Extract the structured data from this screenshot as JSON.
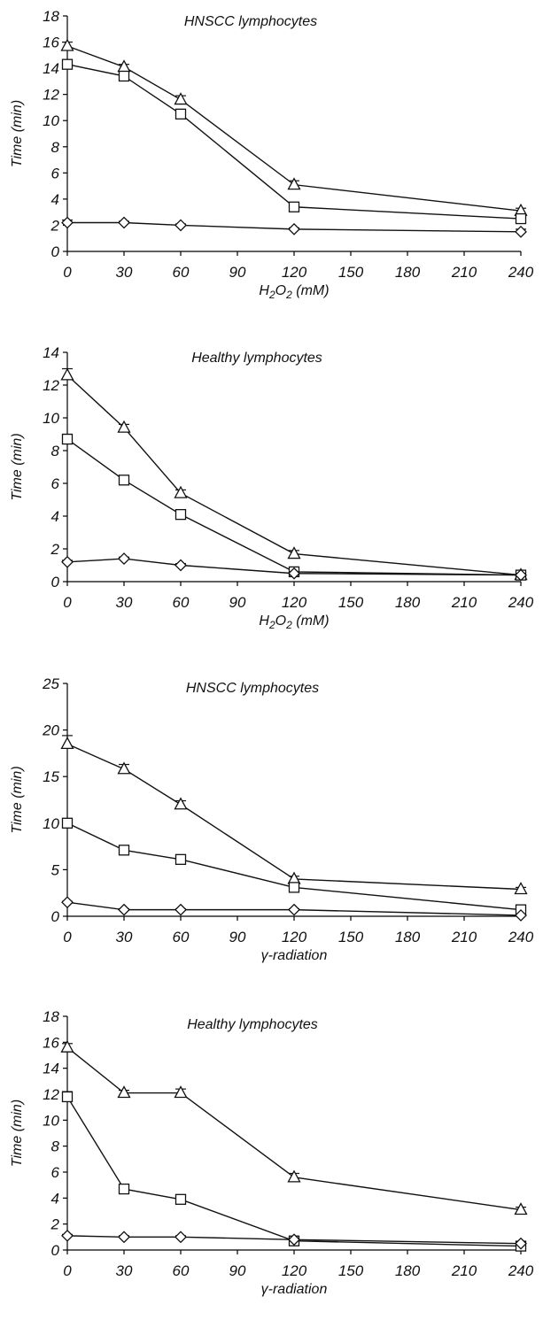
{
  "chart_data": [
    {
      "type": "line",
      "title": "HNSCC lymphocytes",
      "xlabel": "H2O2 (mM)",
      "xlabel_main": "H",
      "xlabel_sub1": "2",
      "xlabel_mid": "O",
      "xlabel_sub2": "2",
      "xlabel_rest": " (mM)",
      "ylabel": "Time (min)",
      "x": [
        0,
        30,
        60,
        120,
        240
      ],
      "xticks": [
        0,
        30,
        60,
        90,
        120,
        150,
        180,
        210,
        240
      ],
      "xlim": [
        0,
        240
      ],
      "yticks": [
        0,
        2,
        4,
        6,
        8,
        10,
        12,
        14,
        16,
        18
      ],
      "ylim": [
        0,
        18
      ],
      "grid": false,
      "series": [
        {
          "marker": "triangle",
          "values": [
            15.7,
            14.1,
            11.6,
            5.1,
            3.1
          ],
          "errors": [
            0.3,
            0.2,
            0.3,
            0.3,
            0.2
          ]
        },
        {
          "marker": "square",
          "values": [
            14.3,
            13.4,
            10.5,
            3.4,
            2.5
          ],
          "errors": [
            0.3,
            0.2,
            0.2,
            0.2,
            0.2
          ]
        },
        {
          "marker": "diamond",
          "values": [
            2.2,
            2.2,
            2.0,
            1.7,
            1.5
          ],
          "errors": [
            0.2,
            0.1,
            0.1,
            0.1,
            0.2
          ]
        }
      ]
    },
    {
      "type": "line",
      "title": "Healthy lymphocytes",
      "xlabel": "H2O2 (mM)",
      "xlabel_main": "H",
      "xlabel_sub1": "2",
      "xlabel_mid": "O",
      "xlabel_sub2": "2",
      "xlabel_rest": " (mM)",
      "ylabel": "Time (min)",
      "x": [
        0,
        30,
        60,
        120,
        240
      ],
      "xticks": [
        0,
        30,
        60,
        90,
        120,
        150,
        180,
        210,
        240
      ],
      "xlim": [
        0,
        240
      ],
      "yticks": [
        0,
        2,
        4,
        6,
        8,
        10,
        12,
        14
      ],
      "ylim": [
        0,
        14
      ],
      "grid": false,
      "series": [
        {
          "marker": "triangle",
          "values": [
            12.6,
            9.4,
            5.4,
            1.7,
            0.4
          ],
          "errors": [
            0.4,
            0.2,
            0.2,
            0.2,
            0.1
          ]
        },
        {
          "marker": "square",
          "values": [
            8.7,
            6.2,
            4.1,
            0.6,
            0.4
          ],
          "errors": [
            0.3,
            0.1,
            0.2,
            0.1,
            0.1
          ]
        },
        {
          "marker": "diamond",
          "values": [
            1.2,
            1.4,
            1.0,
            0.5,
            0.4
          ],
          "errors": [
            0.1,
            0.1,
            0.1,
            0.1,
            0.1
          ]
        }
      ]
    },
    {
      "type": "line",
      "title": "HNSCC lymphocytes",
      "xlabel": "γ-radiation",
      "xlabel_main": "γ-radiation",
      "ylabel": "Time (min)",
      "x": [
        0,
        30,
        60,
        120,
        240
      ],
      "xticks": [
        0,
        30,
        60,
        90,
        120,
        150,
        180,
        210,
        240
      ],
      "xlim": [
        0,
        240
      ],
      "yticks": [
        0,
        5,
        10,
        15,
        20,
        25
      ],
      "ylim": [
        0,
        25
      ],
      "grid": false,
      "series": [
        {
          "marker": "triangle",
          "values": [
            18.5,
            15.8,
            12.0,
            4.0,
            2.9
          ],
          "errors": [
            0.9,
            0.5,
            0.4,
            0.3,
            0.2
          ]
        },
        {
          "marker": "square",
          "values": [
            10.0,
            7.1,
            6.1,
            3.1,
            0.7
          ],
          "errors": [
            0.2,
            0.4,
            0.2,
            0.2,
            0.2
          ]
        },
        {
          "marker": "diamond",
          "values": [
            1.5,
            0.7,
            0.7,
            0.7,
            0.1
          ],
          "errors": [
            0.1,
            0.1,
            0.1,
            0.1,
            0.1
          ]
        }
      ]
    },
    {
      "type": "line",
      "title": "Healthy lymphocytes",
      "xlabel": "γ-radiation",
      "xlabel_main": "γ-radiation",
      "ylabel": "Time (min)",
      "x": [
        0,
        30,
        60,
        120,
        240
      ],
      "xticks": [
        0,
        30,
        60,
        90,
        120,
        150,
        180,
        210,
        240
      ],
      "xlim": [
        0,
        240
      ],
      "yticks": [
        0,
        2,
        4,
        6,
        8,
        10,
        12,
        14,
        16,
        18
      ],
      "ylim": [
        0,
        18
      ],
      "grid": false,
      "series": [
        {
          "marker": "triangle",
          "values": [
            15.6,
            12.1,
            12.1,
            5.6,
            3.1
          ],
          "errors": [
            0.3,
            0.2,
            0.3,
            0.3,
            0.2
          ]
        },
        {
          "marker": "square",
          "values": [
            11.8,
            4.7,
            3.9,
            0.7,
            0.3
          ],
          "errors": [
            0.4,
            0.1,
            0.2,
            0.1,
            0.1
          ]
        },
        {
          "marker": "diamond",
          "values": [
            1.1,
            1.0,
            1.0,
            0.8,
            0.5
          ],
          "errors": [
            0.1,
            0.1,
            0.1,
            0.1,
            0.1
          ]
        }
      ]
    }
  ]
}
